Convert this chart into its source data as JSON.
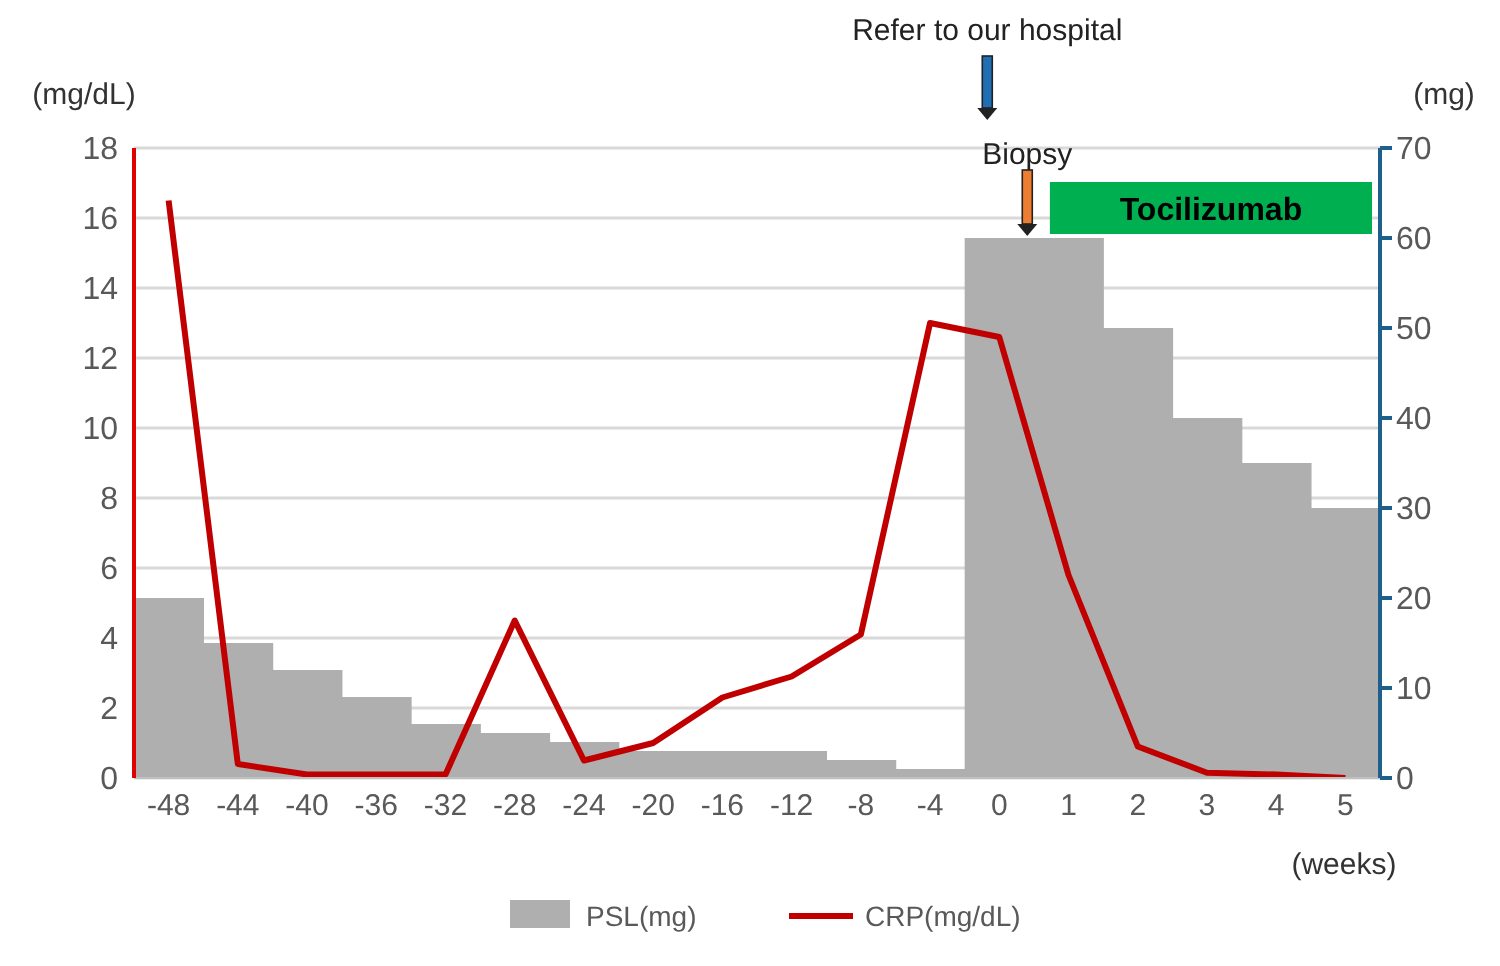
{
  "chart_data": {
    "type": "bar",
    "categories": [
      "-48",
      "-44",
      "-40",
      "-36",
      "-32",
      "-28",
      "-24",
      "-20",
      "-16",
      "-12",
      "-8",
      "-4",
      "0",
      "1",
      "2",
      "3",
      "4",
      "5"
    ],
    "series": [
      {
        "name": "PSL(mg)",
        "axis": "y2",
        "color": "#afafaf",
        "values": [
          20,
          15,
          12,
          9,
          6,
          5,
          4,
          3,
          3,
          3,
          2,
          1,
          60,
          60,
          50,
          40,
          35,
          30
        ]
      },
      {
        "name": "CRP(mg/dL)",
        "type": "line",
        "color": "#c00000",
        "values": [
          16.5,
          0.4,
          0.1,
          0.1,
          0.1,
          4.5,
          0.5,
          1.0,
          2.3,
          2.9,
          4.1,
          13.0,
          12.6,
          5.8,
          0.9,
          0.15,
          0.1,
          0.0
        ]
      }
    ],
    "ylabel": "(mg/dL)",
    "y2label": "(mg)",
    "xlabel": "(weeks)",
    "ylim": [
      0,
      18
    ],
    "yticks": [
      0,
      2,
      4,
      6,
      8,
      10,
      12,
      14,
      16,
      18
    ],
    "y2lim": [
      0,
      70
    ],
    "y2ticks": [
      0,
      10,
      20,
      30,
      40,
      50,
      60,
      70
    ],
    "annotations": [
      "Refer to our hospital",
      "Biopsy"
    ],
    "bands": [
      {
        "axis": "x",
        "from": "1",
        "to": "5",
        "label": "Tocilizumab",
        "color": "#00b050"
      }
    ],
    "grid": "y",
    "legend": "bottom",
    "marker": "none",
    "line_style": "solid"
  }
}
